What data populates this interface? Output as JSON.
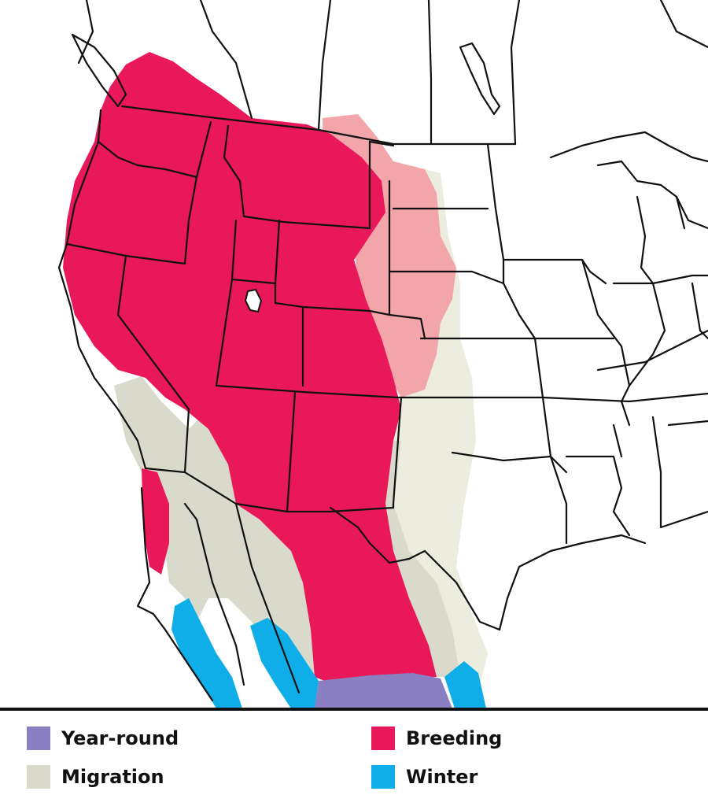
{
  "legend": {
    "items": [
      {
        "key": "year-round",
        "label": "Year-round",
        "color": "#8a7fc0"
      },
      {
        "key": "breeding",
        "label": "Breeding",
        "color": "#e8185a"
      },
      {
        "key": "migration",
        "label": "Migration",
        "color": "#d9d9cc"
      },
      {
        "key": "winter",
        "label": "Winter",
        "color": "#10aee8"
      }
    ]
  },
  "map": {
    "colors": {
      "breeding": "#e8185a",
      "breeding_light": "#f2a6aa",
      "migration": "#d9d9cc",
      "migration_light": "#ececdf",
      "winter": "#10aee8",
      "year_round": "#8a7fc0",
      "borders": "#111111",
      "land": "#ffffff"
    }
  }
}
